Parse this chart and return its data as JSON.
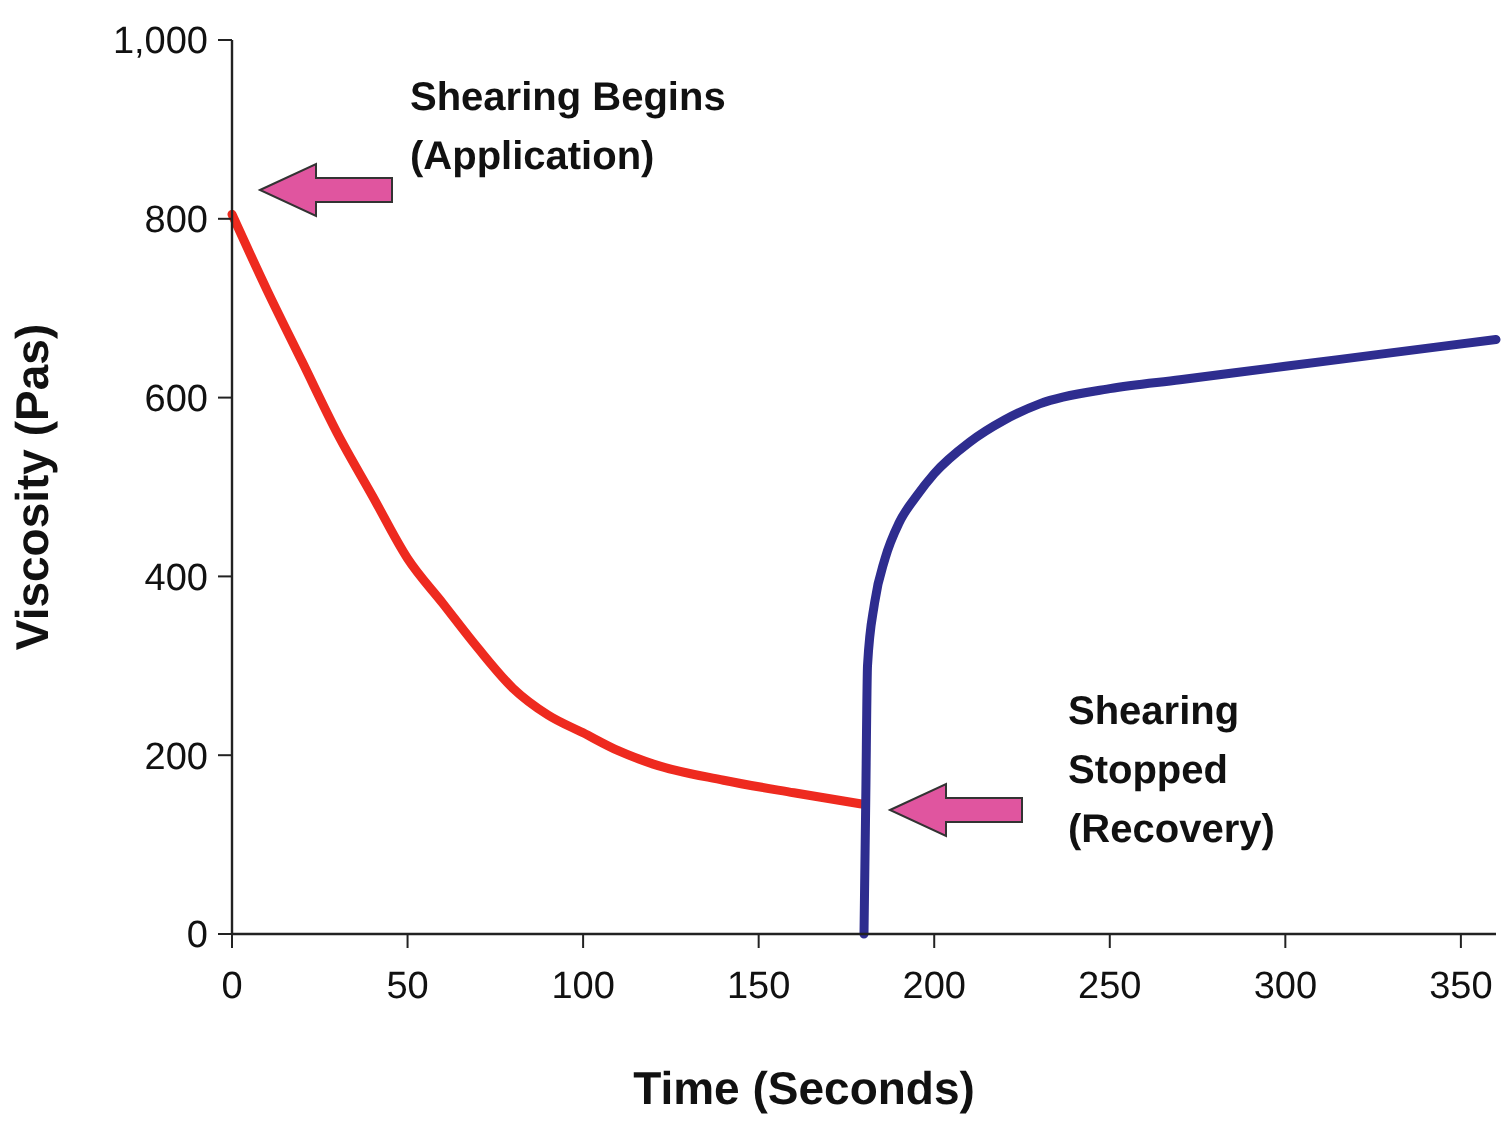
{
  "chart_data": {
    "type": "line",
    "xlabel": "Time (Seconds)",
    "ylabel": "Viscosity (Pas)",
    "xlim": [
      0,
      360
    ],
    "xticks": [
      0,
      50,
      100,
      150,
      200,
      250,
      300,
      350
    ],
    "ylim": [
      0,
      1000
    ],
    "yticks": [
      0,
      200,
      400,
      600,
      800,
      {
        "value": 1000,
        "label": "1,000"
      }
    ],
    "grid": false,
    "marker": "none",
    "line_style": "solid",
    "series": [
      {
        "color": "#ee2a1f",
        "x": [
          0,
          10,
          20,
          30,
          40,
          50,
          60,
          70,
          80,
          90,
          100,
          110,
          120,
          140,
          160,
          180
        ],
        "values": [
          805,
          720,
          640,
          560,
          490,
          420,
          370,
          320,
          275,
          245,
          225,
          205,
          190,
          172,
          158,
          145
        ]
      },
      {
        "color": "#2e2d8f",
        "x": [
          180,
          180.5,
          181,
          183,
          186,
          190,
          195,
          200,
          210,
          220,
          230,
          250,
          270,
          300,
          330,
          360
        ],
        "values": [
          0,
          150,
          300,
          370,
          420,
          460,
          490,
          515,
          550,
          575,
          593,
          610,
          620,
          635,
          650,
          665
        ]
      }
    ],
    "annotations": [
      "Shearing Begins\n(Application)",
      "Shearing\nStopped\n(Recovery)"
    ]
  }
}
